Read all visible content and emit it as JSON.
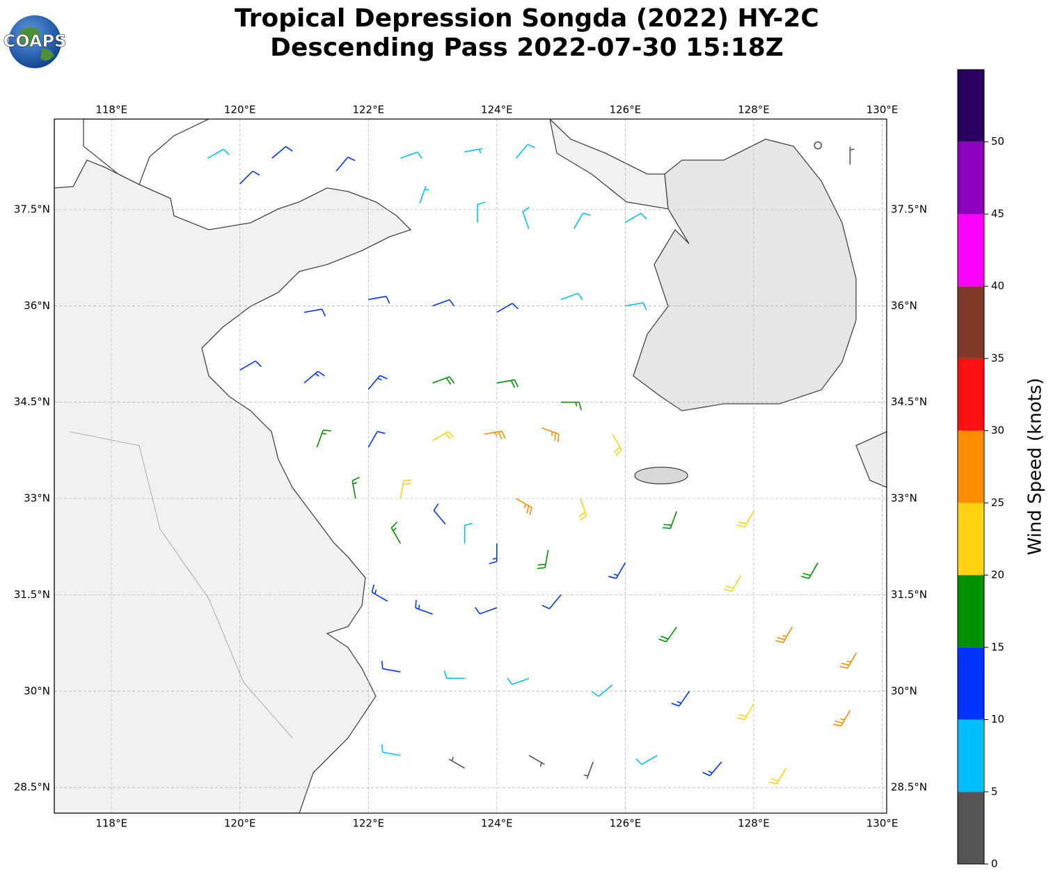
{
  "chart_data": {
    "type": "wind-barb-map",
    "title": [
      "Tropical Depression Songda (2022) HY-2C",
      "Descending Pass 2022-07-30 15:18Z"
    ],
    "logo_text": "COAPS",
    "xlim": [
      117.11,
      130.07
    ],
    "ylim": [
      28.1,
      38.91
    ],
    "xticks": [
      {
        "value": 118,
        "label": "118°E"
      },
      {
        "value": 120,
        "label": "120°E"
      },
      {
        "value": 122,
        "label": "122°E"
      },
      {
        "value": 124,
        "label": "124°E"
      },
      {
        "value": 126,
        "label": "126°E"
      },
      {
        "value": 128,
        "label": "128°E"
      },
      {
        "value": 130,
        "label": "130°E"
      }
    ],
    "yticks": [
      {
        "value": 28.5,
        "label": "28.5°N"
      },
      {
        "value": 30,
        "label": "30°N"
      },
      {
        "value": 31.5,
        "label": "31.5°N"
      },
      {
        "value": 33,
        "label": "33°N"
      },
      {
        "value": 34.5,
        "label": "34.5°N"
      },
      {
        "value": 36,
        "label": "36°N"
      },
      {
        "value": 37.5,
        "label": "37.5°N"
      }
    ],
    "grid": true,
    "colorbar": {
      "label": "Wind Speed (knots)",
      "lim": [
        0,
        55
      ],
      "bounds": [
        0,
        5,
        10,
        15,
        20,
        25,
        30,
        35,
        40,
        45,
        50,
        55
      ],
      "colors": [
        "#555555",
        "#00bfff",
        "#0033ff",
        "#009100",
        "#ffd20f",
        "#ff8c00",
        "#ff1010",
        "#7f3a28",
        "#ff00ff",
        "#8a00bb",
        "#2a0060"
      ],
      "ticks": [
        0,
        5,
        10,
        15,
        20,
        25,
        30,
        35,
        40,
        45,
        50
      ]
    },
    "barbs": [
      {
        "lon": 119.5,
        "lat": 38.3,
        "speed": 8,
        "direction": 60
      },
      {
        "lon": 120.5,
        "lat": 38.3,
        "speed": 12,
        "direction": 50
      },
      {
        "lon": 121.5,
        "lat": 38.1,
        "speed": 10,
        "direction": 40
      },
      {
        "lon": 122.5,
        "lat": 38.3,
        "speed": 8,
        "direction": 70
      },
      {
        "lon": 123.5,
        "lat": 38.4,
        "speed": 7,
        "direction": 80
      },
      {
        "lon": 124.3,
        "lat": 38.3,
        "speed": 8,
        "direction": 40
      },
      {
        "lon": 120,
        "lat": 37.9,
        "speed": 12,
        "direction": 45
      },
      {
        "lon": 122.8,
        "lat": 37.6,
        "speed": 7,
        "direction": 20
      },
      {
        "lon": 123.7,
        "lat": 37.3,
        "speed": 8,
        "direction": 0
      },
      {
        "lon": 124.5,
        "lat": 37.2,
        "speed": 8,
        "direction": 340
      },
      {
        "lon": 125.2,
        "lat": 37.2,
        "speed": 8,
        "direction": 30
      },
      {
        "lon": 126,
        "lat": 37.3,
        "speed": 8,
        "direction": 60
      },
      {
        "lon": 121,
        "lat": 35.9,
        "speed": 12,
        "direction": 80
      },
      {
        "lon": 122,
        "lat": 36.1,
        "speed": 12,
        "direction": 80
      },
      {
        "lon": 123,
        "lat": 36.0,
        "speed": 12,
        "direction": 70
      },
      {
        "lon": 124,
        "lat": 35.9,
        "speed": 10,
        "direction": 60
      },
      {
        "lon": 125,
        "lat": 36.1,
        "speed": 9,
        "direction": 70
      },
      {
        "lon": 126,
        "lat": 36.0,
        "speed": 8,
        "direction": 80
      },
      {
        "lon": 120,
        "lat": 35.0,
        "speed": 12,
        "direction": 60
      },
      {
        "lon": 121,
        "lat": 34.8,
        "speed": 13,
        "direction": 50
      },
      {
        "lon": 122,
        "lat": 34.7,
        "speed": 14,
        "direction": 40
      },
      {
        "lon": 123,
        "lat": 34.8,
        "speed": 18,
        "direction": 70
      },
      {
        "lon": 124,
        "lat": 34.8,
        "speed": 18,
        "direction": 80
      },
      {
        "lon": 125,
        "lat": 34.5,
        "speed": 17,
        "direction": 90
      },
      {
        "lon": 121.2,
        "lat": 33.8,
        "speed": 17,
        "direction": 20
      },
      {
        "lon": 122,
        "lat": 33.8,
        "speed": 12,
        "direction": 30
      },
      {
        "lon": 123,
        "lat": 33.9,
        "speed": 22,
        "direction": 60
      },
      {
        "lon": 123.8,
        "lat": 34.0,
        "speed": 27,
        "direction": 80
      },
      {
        "lon": 124.7,
        "lat": 34.1,
        "speed": 25,
        "direction": 110
      },
      {
        "lon": 125.8,
        "lat": 34.0,
        "speed": 20,
        "direction": 150
      },
      {
        "lon": 121.8,
        "lat": 33.0,
        "speed": 17,
        "direction": 350
      },
      {
        "lon": 122.5,
        "lat": 33.0,
        "speed": 20,
        "direction": 10
      },
      {
        "lon": 124.3,
        "lat": 33.0,
        "speed": 27,
        "direction": 120
      },
      {
        "lon": 125.3,
        "lat": 33.0,
        "speed": 22,
        "direction": 160
      },
      {
        "lon": 126.8,
        "lat": 32.8,
        "speed": 18,
        "direction": 200
      },
      {
        "lon": 128,
        "lat": 32.8,
        "speed": 22,
        "direction": 210
      },
      {
        "lon": 122.5,
        "lat": 32.3,
        "speed": 17,
        "direction": 330
      },
      {
        "lon": 123.2,
        "lat": 32.6,
        "speed": 12,
        "direction": 320
      },
      {
        "lon": 123.5,
        "lat": 32.3,
        "speed": 8,
        "direction": 0
      },
      {
        "lon": 124.0,
        "lat": 32.3,
        "speed": 13,
        "direction": 180
      },
      {
        "lon": 124.8,
        "lat": 32.2,
        "speed": 18,
        "direction": 190
      },
      {
        "lon": 126,
        "lat": 32.0,
        "speed": 14,
        "direction": 210
      },
      {
        "lon": 127.8,
        "lat": 31.8,
        "speed": 22,
        "direction": 210
      },
      {
        "lon": 129,
        "lat": 32.0,
        "speed": 18,
        "direction": 210
      },
      {
        "lon": 122.3,
        "lat": 31.4,
        "speed": 13,
        "direction": 300
      },
      {
        "lon": 123,
        "lat": 31.2,
        "speed": 13,
        "direction": 290
      },
      {
        "lon": 124,
        "lat": 31.3,
        "speed": 10,
        "direction": 250
      },
      {
        "lon": 125,
        "lat": 31.5,
        "speed": 12,
        "direction": 220
      },
      {
        "lon": 126.8,
        "lat": 31.0,
        "speed": 18,
        "direction": 215
      },
      {
        "lon": 128.6,
        "lat": 31.0,
        "speed": 27,
        "direction": 210
      },
      {
        "lon": 129.6,
        "lat": 30.6,
        "speed": 27,
        "direction": 210
      },
      {
        "lon": 122.5,
        "lat": 30.3,
        "speed": 12,
        "direction": 280
      },
      {
        "lon": 123.5,
        "lat": 30.2,
        "speed": 8,
        "direction": 270
      },
      {
        "lon": 124.5,
        "lat": 30.2,
        "speed": 8,
        "direction": 250
      },
      {
        "lon": 125.8,
        "lat": 30.1,
        "speed": 8,
        "direction": 230
      },
      {
        "lon": 127,
        "lat": 30.0,
        "speed": 14,
        "direction": 215
      },
      {
        "lon": 128,
        "lat": 29.8,
        "speed": 22,
        "direction": 210
      },
      {
        "lon": 129.5,
        "lat": 29.7,
        "speed": 27,
        "direction": 210
      },
      {
        "lon": 122.5,
        "lat": 29.0,
        "speed": 8,
        "direction": 280
      },
      {
        "lon": 123.5,
        "lat": 28.8,
        "speed": 3,
        "direction": 300
      },
      {
        "lon": 124.5,
        "lat": 29.0,
        "speed": 4,
        "direction": 120
      },
      {
        "lon": 125.5,
        "lat": 28.9,
        "speed": 3,
        "direction": 200
      },
      {
        "lon": 126.5,
        "lat": 29.0,
        "speed": 8,
        "direction": 240
      },
      {
        "lon": 127.5,
        "lat": 28.9,
        "speed": 13,
        "direction": 220
      },
      {
        "lon": 128.5,
        "lat": 28.8,
        "speed": 22,
        "direction": 210
      },
      {
        "lon": 129.5,
        "lat": 38.2,
        "speed": 3,
        "direction": 0
      },
      {
        "lon": 129.0,
        "lat": 38.5,
        "speed": 2,
        "direction": 0
      }
    ]
  }
}
